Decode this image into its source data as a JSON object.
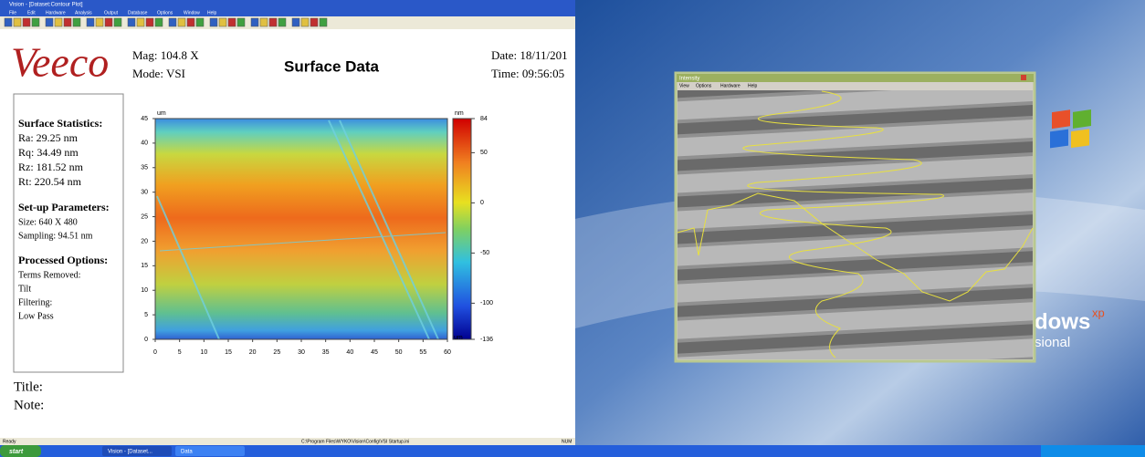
{
  "window": {
    "title": "Vision - [Dataset:Contour Plot]",
    "menu": [
      "File",
      "Edit",
      "Hardware",
      "Analysis",
      "Output",
      "Database",
      "Options",
      "Window",
      "Help"
    ]
  },
  "header": {
    "logo": "Veeco",
    "mag": "Mag: 104.8 X",
    "mode": "Mode: VSI",
    "title": "Surface Data",
    "date": "Date: 18/11/201",
    "time": "Time: 09:56:05"
  },
  "stats": [
    {
      "heading": "Surface Statistics:",
      "lines": [
        "Ra: 29.25 nm",
        "Rq: 34.49 nm",
        "Rz: 181.52 nm",
        "Rt: 220.54 nm"
      ]
    },
    {
      "heading": "Set-up Parameters:",
      "lines": [
        "Size: 640 X 480",
        "Sampling: 94.51 nm"
      ]
    },
    {
      "heading": "Processed Options:",
      "lines": [
        "Terms Removed:",
        "Tilt",
        "Filtering:",
        "Low Pass"
      ]
    }
  ],
  "plot": {
    "x_unit": "um",
    "y_unit": "um",
    "z_unit": "nm",
    "xticks": [
      0,
      5,
      10,
      15,
      20,
      25,
      30,
      35,
      40,
      45,
      50,
      55,
      60
    ],
    "yticks": [
      0,
      5,
      10,
      15,
      20,
      25,
      30,
      35,
      40,
      45
    ],
    "zticks": [
      84,
      50,
      0,
      -50,
      -100,
      -136
    ]
  },
  "notes": {
    "title": "Title:",
    "note": "Note:"
  },
  "status": {
    "left": "Ready",
    "path": "C:\\Program Files\\WYKO\\Vision\\Config\\VSI Startup.ini",
    "right": "NUM"
  },
  "taskbar": {
    "start": "start",
    "tasks": [
      "Vision - [Dataset...",
      "Data"
    ]
  },
  "intensity": {
    "title": "Intensity",
    "menu": [
      "View",
      "Options",
      "Hardware",
      "Help"
    ]
  },
  "desktop": {
    "logo": "dows",
    "superscript": "xp",
    "edition": "sional"
  }
}
